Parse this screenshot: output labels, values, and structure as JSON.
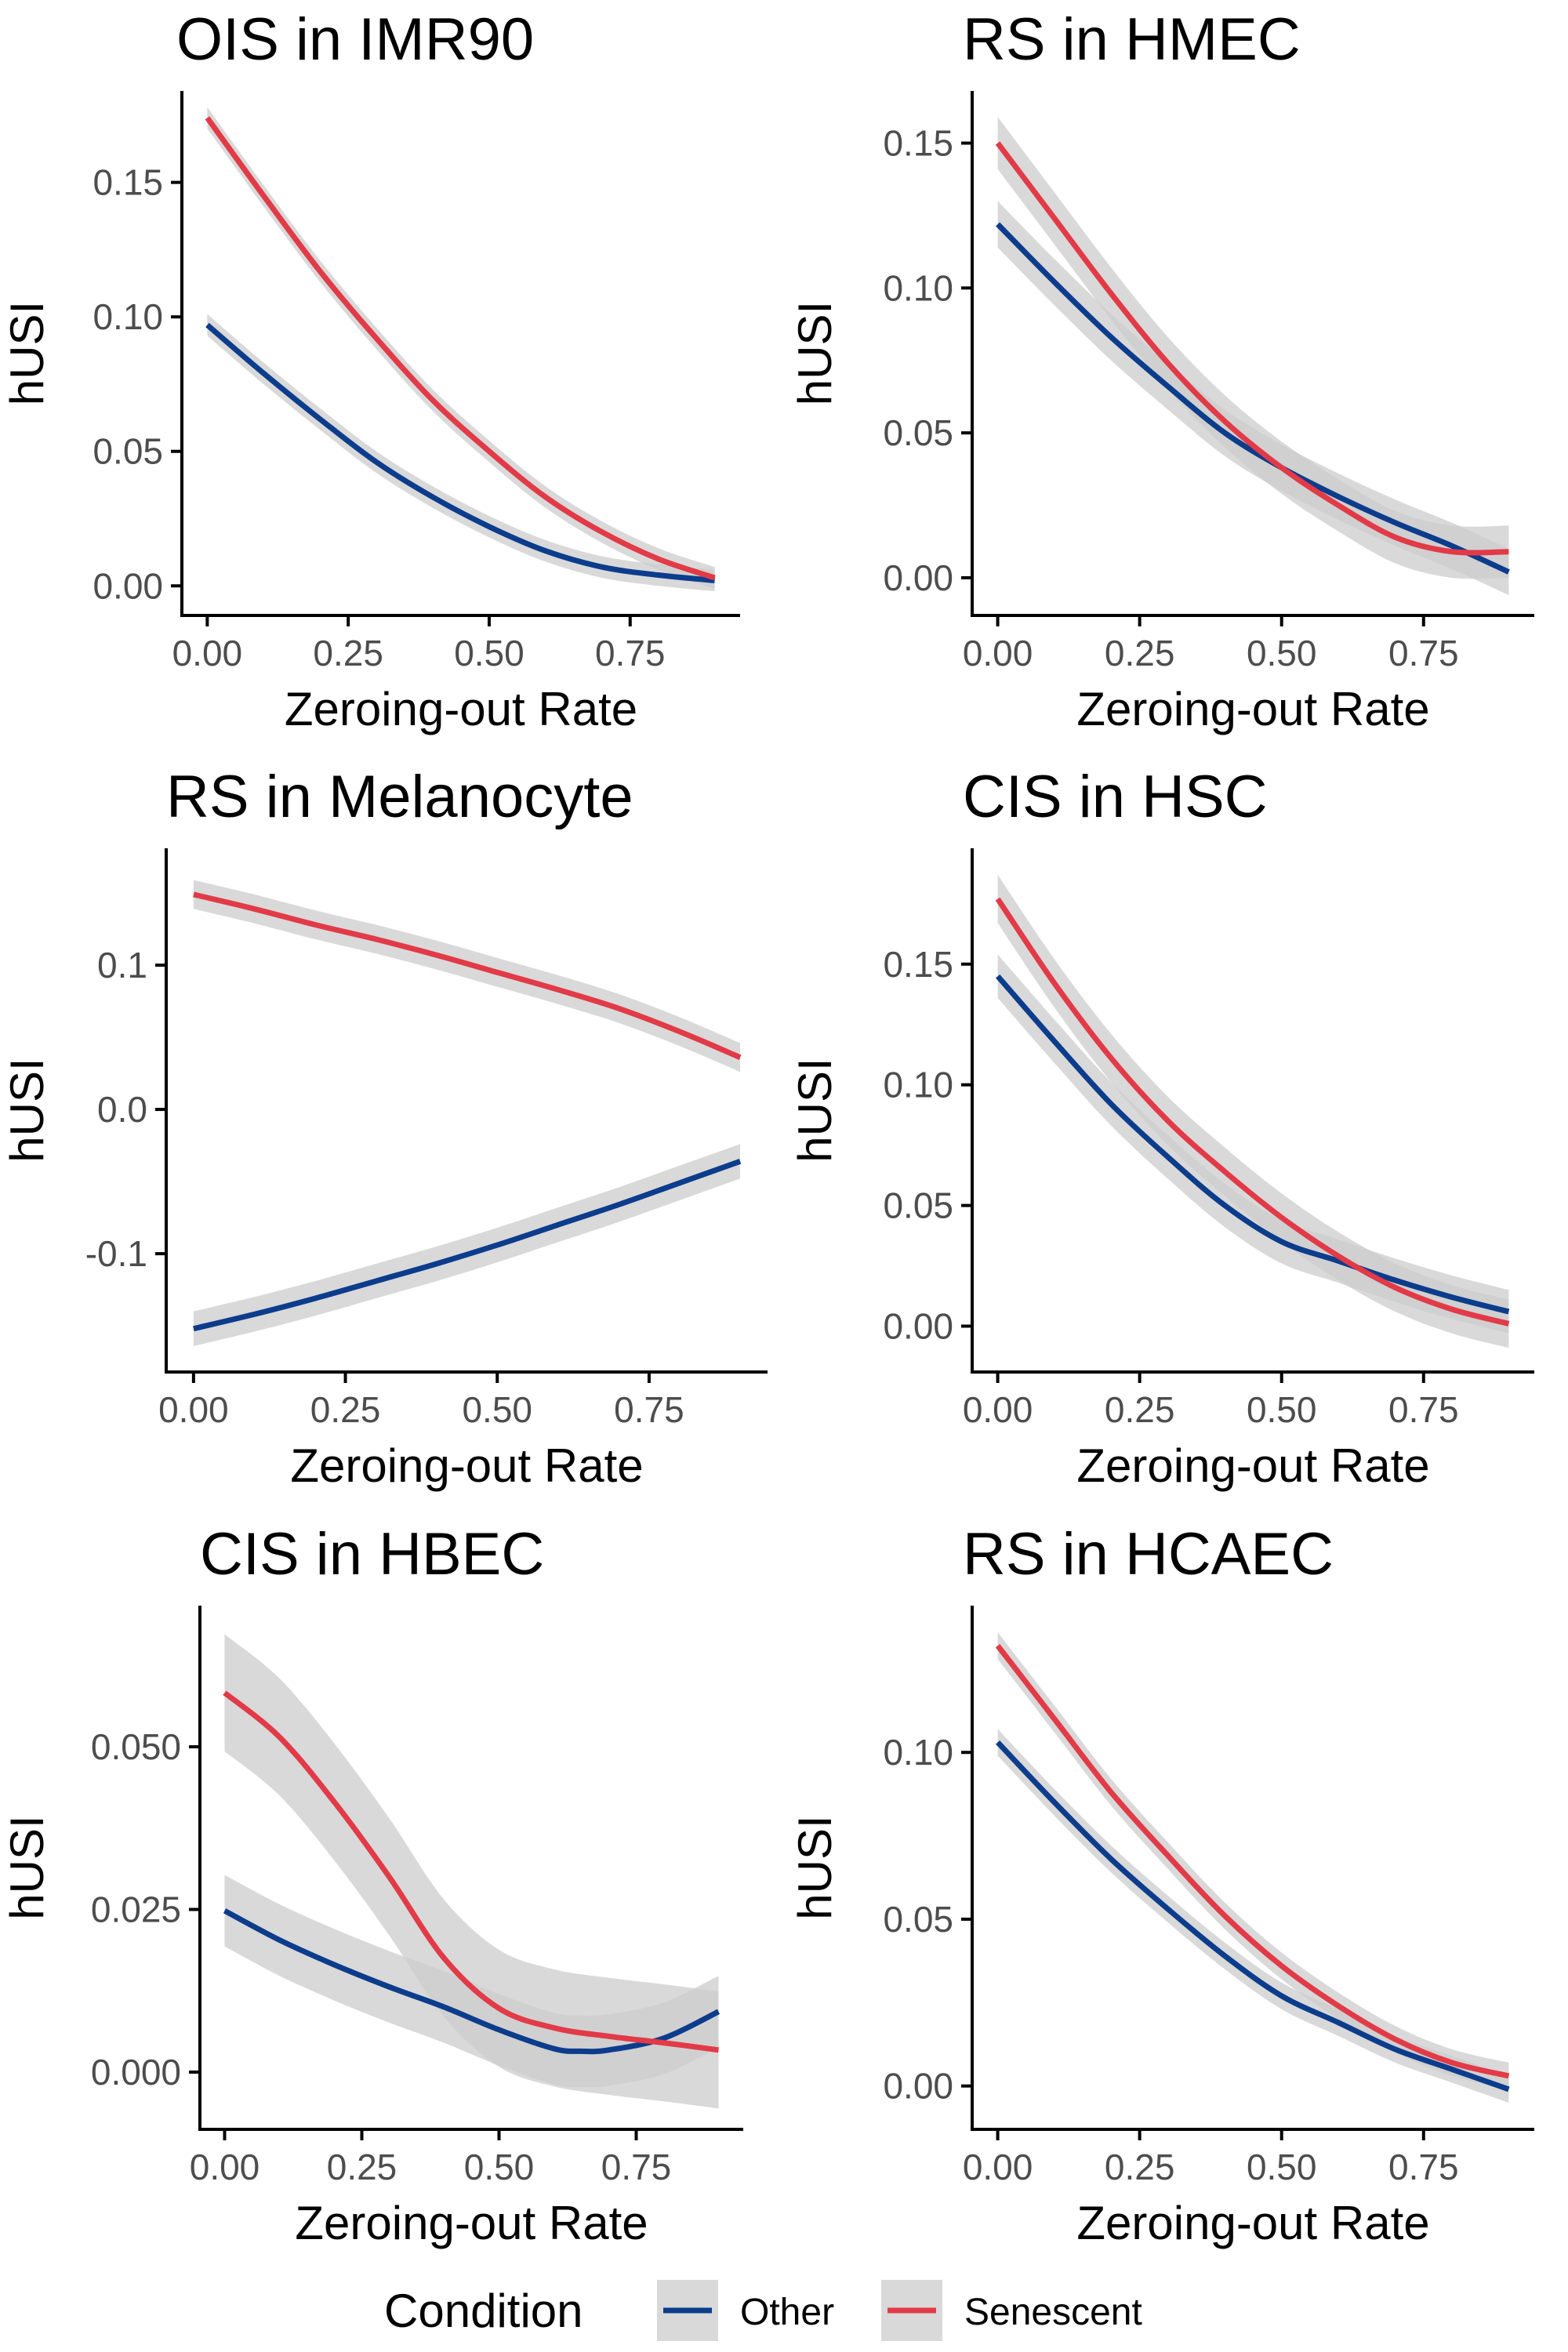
{
  "chart_data": [
    {
      "type": "line",
      "title": "OIS in IMR90",
      "xlabel": "Zeroing-out Rate",
      "ylabel": "hUSI",
      "xlim": [
        -0.045,
        0.945
      ],
      "ylim": [
        -0.011,
        0.184
      ],
      "xticks": [
        0,
        0.25,
        0.5,
        0.75
      ],
      "xtick_labels": [
        "0.00",
        "0.25",
        "0.50",
        "0.75"
      ],
      "yticks": [
        0,
        0.05,
        0.1,
        0.15
      ],
      "ytick_labels": [
        "0.00",
        "0.05",
        "0.10",
        "0.15"
      ],
      "series": [
        {
          "name": "Other",
          "x": [
            0,
            0.1,
            0.2,
            0.3,
            0.4,
            0.5,
            0.6,
            0.7,
            0.8,
            0.9
          ],
          "y": [
            0.097,
            0.079,
            0.062,
            0.046,
            0.033,
            0.022,
            0.013,
            0.007,
            0.004,
            0.002
          ],
          "band": 0.004
        },
        {
          "name": "Senescent",
          "x": [
            0,
            0.1,
            0.2,
            0.3,
            0.4,
            0.5,
            0.6,
            0.7,
            0.8,
            0.9
          ],
          "y": [
            0.174,
            0.145,
            0.117,
            0.092,
            0.069,
            0.05,
            0.033,
            0.02,
            0.01,
            0.003
          ],
          "band": 0.004
        }
      ]
    },
    {
      "type": "line",
      "title": "RS in HMEC",
      "xlabel": "Zeroing-out Rate",
      "ylabel": "hUSI",
      "xlim": [
        -0.045,
        0.945
      ],
      "ylim": [
        -0.013,
        0.168
      ],
      "xticks": [
        0,
        0.25,
        0.5,
        0.75
      ],
      "xtick_labels": [
        "0.00",
        "0.25",
        "0.50",
        "0.75"
      ],
      "yticks": [
        0,
        0.05,
        0.1,
        0.15
      ],
      "ytick_labels": [
        "0.00",
        "0.05",
        "0.10",
        "0.15"
      ],
      "series": [
        {
          "name": "Other",
          "x": [
            0,
            0.1,
            0.2,
            0.3,
            0.4,
            0.5,
            0.6,
            0.7,
            0.8,
            0.9
          ],
          "y": [
            0.122,
            0.102,
            0.083,
            0.066,
            0.05,
            0.038,
            0.028,
            0.019,
            0.011,
            0.002
          ],
          "band": 0.008
        },
        {
          "name": "Senescent",
          "x": [
            0,
            0.1,
            0.2,
            0.3,
            0.4,
            0.5,
            0.6,
            0.7,
            0.8,
            0.9
          ],
          "y": [
            0.15,
            0.124,
            0.098,
            0.074,
            0.054,
            0.038,
            0.025,
            0.014,
            0.009,
            0.009
          ],
          "band": 0.009
        }
      ]
    },
    {
      "type": "line",
      "title": "RS in Melanocyte",
      "xlabel": "Zeroing-out Rate",
      "ylabel": "hUSI",
      "xlim": [
        -0.045,
        0.945
      ],
      "ylim": [
        -0.182,
        0.181
      ],
      "xticks": [
        0,
        0.25,
        0.5,
        0.75
      ],
      "xtick_labels": [
        "0.00",
        "0.25",
        "0.50",
        "0.75"
      ],
      "yticks": [
        -0.1,
        0,
        0.1
      ],
      "ytick_labels": [
        "-0.1",
        "0.0",
        "0.1"
      ],
      "series": [
        {
          "name": "Other",
          "x": [
            0,
            0.1,
            0.2,
            0.3,
            0.4,
            0.5,
            0.6,
            0.7,
            0.8,
            0.9
          ],
          "y": [
            -0.152,
            -0.142,
            -0.131,
            -0.119,
            -0.107,
            -0.094,
            -0.08,
            -0.066,
            -0.051,
            -0.036
          ],
          "band": 0.012
        },
        {
          "name": "Senescent",
          "x": [
            0,
            0.1,
            0.2,
            0.3,
            0.4,
            0.5,
            0.6,
            0.7,
            0.8,
            0.9
          ],
          "y": [
            0.149,
            0.139,
            0.128,
            0.118,
            0.107,
            0.095,
            0.083,
            0.07,
            0.054,
            0.036
          ],
          "band": 0.01
        }
      ]
    },
    {
      "type": "line",
      "title": "CIS in HSC",
      "xlabel": "Zeroing-out Rate",
      "ylabel": "hUSI",
      "xlim": [
        -0.045,
        0.945
      ],
      "ylim": [
        -0.019,
        0.198
      ],
      "xticks": [
        0,
        0.25,
        0.5,
        0.75
      ],
      "xtick_labels": [
        "0.00",
        "0.25",
        "0.50",
        "0.75"
      ],
      "yticks": [
        0,
        0.05,
        0.1,
        0.15
      ],
      "ytick_labels": [
        "0.00",
        "0.05",
        "0.10",
        "0.15"
      ],
      "series": [
        {
          "name": "Other",
          "x": [
            0,
            0.1,
            0.2,
            0.3,
            0.4,
            0.5,
            0.6,
            0.7,
            0.8,
            0.9
          ],
          "y": [
            0.145,
            0.118,
            0.092,
            0.07,
            0.05,
            0.035,
            0.027,
            0.019,
            0.012,
            0.006
          ],
          "band": 0.009
        },
        {
          "name": "Senescent",
          "x": [
            0,
            0.1,
            0.2,
            0.3,
            0.4,
            0.5,
            0.6,
            0.7,
            0.8,
            0.9
          ],
          "y": [
            0.177,
            0.142,
            0.111,
            0.085,
            0.064,
            0.045,
            0.029,
            0.016,
            0.007,
            0.001
          ],
          "band": 0.01
        }
      ]
    },
    {
      "type": "line",
      "title": "CIS in HBEC",
      "xlabel": "Zeroing-out Rate",
      "ylabel": "hUSI",
      "xlim": [
        -0.045,
        0.945
      ],
      "ylim": [
        -0.0088,
        0.0717
      ],
      "xticks": [
        0,
        0.25,
        0.5,
        0.75
      ],
      "xtick_labels": [
        "0.00",
        "0.25",
        "0.50",
        "0.75"
      ],
      "yticks": [
        0,
        0.025,
        0.05
      ],
      "ytick_labels": [
        "0.000",
        "0.025",
        "0.050"
      ],
      "series": [
        {
          "name": "Other",
          "x": [
            0,
            0.1,
            0.2,
            0.3,
            0.4,
            0.5,
            0.6,
            0.65,
            0.7,
            0.8,
            0.9
          ],
          "y": [
            0.0248,
            0.0203,
            0.0165,
            0.0131,
            0.01,
            0.0065,
            0.0036,
            0.0032,
            0.0034,
            0.0052,
            0.0093
          ],
          "band": 0.0055
        },
        {
          "name": "Senescent",
          "x": [
            0,
            0.1,
            0.2,
            0.3,
            0.4,
            0.5,
            0.6,
            0.7,
            0.8,
            0.9
          ],
          "y": [
            0.0583,
            0.0515,
            0.0415,
            0.03,
            0.0175,
            0.0098,
            0.0068,
            0.0055,
            0.0045,
            0.0034
          ],
          "band": 0.009
        }
      ]
    },
    {
      "type": "line",
      "title": "RS in HCAEC",
      "xlabel": "Zeroing-out Rate",
      "ylabel": "hUSI",
      "xlim": [
        -0.045,
        0.945
      ],
      "ylim": [
        -0.013,
        0.144
      ],
      "xticks": [
        0,
        0.25,
        0.5,
        0.75
      ],
      "xtick_labels": [
        "0.00",
        "0.25",
        "0.50",
        "0.75"
      ],
      "yticks": [
        0,
        0.05,
        0.1
      ],
      "ytick_labels": [
        "0.00",
        "0.05",
        "0.10"
      ],
      "series": [
        {
          "name": "Other",
          "x": [
            0,
            0.1,
            0.2,
            0.3,
            0.4,
            0.5,
            0.6,
            0.7,
            0.8,
            0.9
          ],
          "y": [
            0.103,
            0.085,
            0.068,
            0.053,
            0.039,
            0.027,
            0.019,
            0.011,
            0.005,
            -0.001
          ],
          "band": 0.004
        },
        {
          "name": "Senescent",
          "x": [
            0,
            0.1,
            0.2,
            0.3,
            0.4,
            0.5,
            0.6,
            0.7,
            0.8,
            0.9
          ],
          "y": [
            0.132,
            0.11,
            0.088,
            0.069,
            0.051,
            0.036,
            0.024,
            0.014,
            0.007,
            0.003
          ],
          "band": 0.004
        }
      ]
    }
  ],
  "legend": {
    "title": "Condition",
    "items": [
      {
        "name": "Other",
        "color": "#0c3c8c"
      },
      {
        "name": "Senescent",
        "color": "#e23a47"
      }
    ]
  },
  "colors": {
    "Other": "#0c3c8c",
    "Senescent": "#e23a47",
    "band": "#cccccc",
    "axis": "#000000",
    "tick_text": "#4d4d4d"
  }
}
